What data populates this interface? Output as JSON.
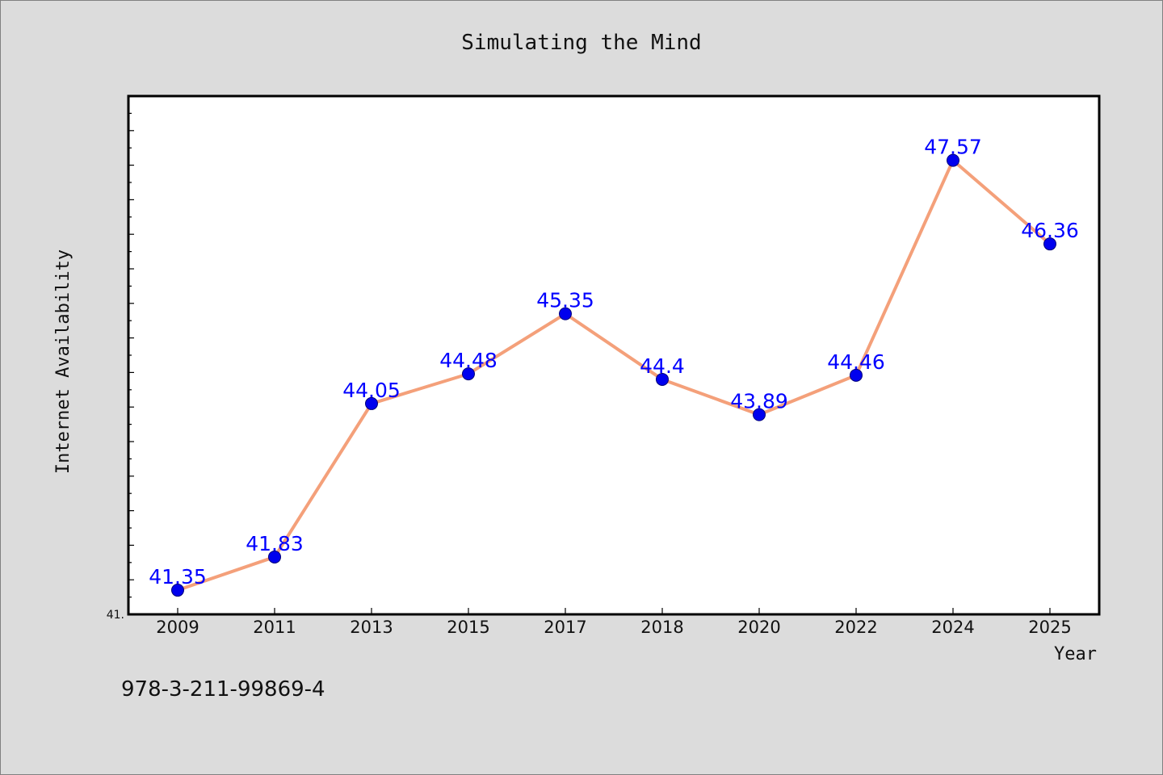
{
  "chart_data": {
    "type": "line",
    "title": "Simulating the Mind",
    "xlabel": "Year",
    "ylabel": "Internet Availability",
    "categories": [
      "2009",
      "2011",
      "2013",
      "2015",
      "2017",
      "2018",
      "2020",
      "2022",
      "2024",
      "2025"
    ],
    "series": [
      {
        "values": [
          41.35,
          41.83,
          44.05,
          44.48,
          45.35,
          44.4,
          43.89,
          44.46,
          47.57,
          46.36
        ],
        "labels": [
          "41.35",
          "41.83",
          "44.05",
          "44.48",
          "45.35",
          "44.4",
          "43.89",
          "44.46",
          "47.57",
          "46.36"
        ]
      }
    ],
    "ylim": [
      41.0,
      48.5
    ],
    "y_min_tick_label": "41.",
    "grid": false,
    "line_color": "#f4a07a",
    "marker_color": "#0000ee",
    "label_color": "#0000ff"
  },
  "footnote": "978-3-211-99869-4"
}
